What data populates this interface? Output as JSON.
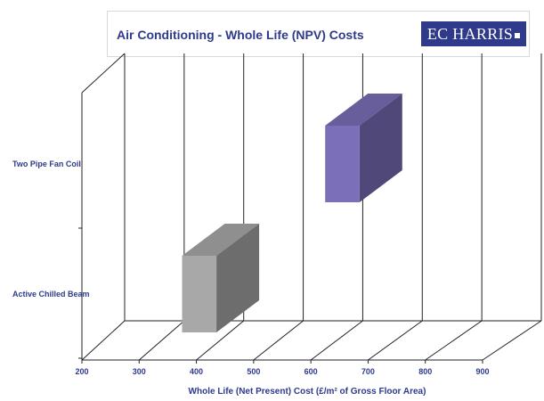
{
  "chart_data": {
    "type": "bar",
    "orientation": "horizontal-3d",
    "title": "Air Conditioning - Whole Life (NPV) Costs",
    "brand": "EC HARRIS",
    "categories": [
      "Two Pipe Fan Coil",
      "Active Chilled Beam"
    ],
    "bars": [
      {
        "category": "Two Pipe Fan Coil",
        "start": 625,
        "end": 685,
        "color": "#7a6fb8"
      },
      {
        "category": "Active Chilled Beam",
        "start": 375,
        "end": 435,
        "color": "#a8a8a8"
      }
    ],
    "xlabel": "Whole Life (Net Present) Cost  (£/m² of Gross Floor Area)",
    "xticks": [
      200,
      300,
      400,
      500,
      600,
      700,
      800,
      900
    ],
    "xlim": [
      200,
      900
    ],
    "grid": true,
    "legend": "none"
  }
}
